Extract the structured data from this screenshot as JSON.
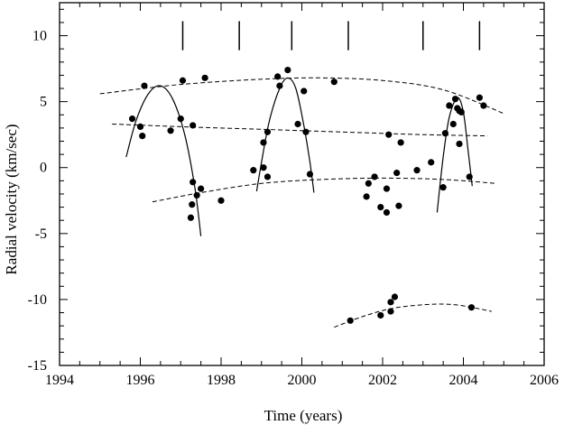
{
  "chart_data": {
    "type": "scatter",
    "title": "",
    "xlabel": "Time (years)",
    "ylabel": "Radial velocity (km/sec)",
    "xlim": [
      1994,
      2006
    ],
    "ylim": [
      -15,
      12.5
    ],
    "x_ticks": [
      1994,
      1996,
      1998,
      2000,
      2002,
      2004,
      2006
    ],
    "y_ticks": [
      -15,
      -10,
      -5,
      0,
      5,
      10
    ],
    "minor_x_step": 0.5,
    "minor_y_step": 1,
    "grid": false,
    "legend": "none",
    "colors": {
      "points": "#000000",
      "curves": "#000000"
    },
    "observations": [
      {
        "x": 1995.8,
        "y": 3.7
      },
      {
        "x": 1996.0,
        "y": 3.1
      },
      {
        "x": 1996.05,
        "y": 2.4
      },
      {
        "x": 1996.1,
        "y": 6.2
      },
      {
        "x": 1996.75,
        "y": 2.8
      },
      {
        "x": 1997.0,
        "y": 3.7
      },
      {
        "x": 1997.05,
        "y": 6.6
      },
      {
        "x": 1997.3,
        "y": 3.2
      },
      {
        "x": 1997.3,
        "y": -1.1
      },
      {
        "x": 1997.28,
        "y": -2.8
      },
      {
        "x": 1997.25,
        "y": -3.8
      },
      {
        "x": 1997.4,
        "y": -2.1
      },
      {
        "x": 1997.5,
        "y": -1.6
      },
      {
        "x": 1997.6,
        "y": 6.8
      },
      {
        "x": 1998.0,
        "y": -2.5
      },
      {
        "x": 1998.8,
        "y": -0.2
      },
      {
        "x": 1999.05,
        "y": 0.0
      },
      {
        "x": 1999.05,
        "y": 1.9
      },
      {
        "x": 1999.15,
        "y": 2.7
      },
      {
        "x": 1999.15,
        "y": -0.7
      },
      {
        "x": 1999.4,
        "y": 6.9
      },
      {
        "x": 1999.45,
        "y": 6.2
      },
      {
        "x": 1999.65,
        "y": 7.4
      },
      {
        "x": 1999.9,
        "y": 3.3
      },
      {
        "x": 2000.05,
        "y": 5.8
      },
      {
        "x": 2000.1,
        "y": 2.7
      },
      {
        "x": 2000.2,
        "y": -0.5
      },
      {
        "x": 2000.8,
        "y": 6.5
      },
      {
        "x": 2001.6,
        "y": -2.2
      },
      {
        "x": 2001.65,
        "y": -1.2
      },
      {
        "x": 2001.8,
        "y": -0.7
      },
      {
        "x": 2001.95,
        "y": -3.0
      },
      {
        "x": 2002.1,
        "y": -3.4
      },
      {
        "x": 2002.1,
        "y": -1.6
      },
      {
        "x": 2002.15,
        "y": 2.5
      },
      {
        "x": 2002.35,
        "y": -0.4
      },
      {
        "x": 2002.4,
        "y": -2.9
      },
      {
        "x": 2002.45,
        "y": 1.9
      },
      {
        "x": 2002.85,
        "y": -0.2
      },
      {
        "x": 2003.2,
        "y": 0.4
      },
      {
        "x": 2003.5,
        "y": -1.5
      },
      {
        "x": 2003.55,
        "y": 2.6
      },
      {
        "x": 2003.65,
        "y": 4.7
      },
      {
        "x": 2003.75,
        "y": 3.3
      },
      {
        "x": 2003.8,
        "y": 5.2
      },
      {
        "x": 2003.85,
        "y": 4.5
      },
      {
        "x": 2003.9,
        "y": 4.3
      },
      {
        "x": 2003.95,
        "y": 4.2
      },
      {
        "x": 2003.9,
        "y": 1.8
      },
      {
        "x": 2004.15,
        "y": -0.7
      },
      {
        "x": 2004.4,
        "y": 5.3
      },
      {
        "x": 2004.5,
        "y": 4.7
      },
      {
        "x": 2001.2,
        "y": -11.6
      },
      {
        "x": 2001.95,
        "y": -11.2
      },
      {
        "x": 2002.2,
        "y": -10.9
      },
      {
        "x": 2002.2,
        "y": -10.2
      },
      {
        "x": 2002.3,
        "y": -9.8
      },
      {
        "x": 2004.2,
        "y": -10.6
      }
    ],
    "dashed_curves": [
      {
        "points": [
          [
            1995.0,
            5.6
          ],
          [
            1997.0,
            6.3
          ],
          [
            1999.0,
            6.7
          ],
          [
            2000.5,
            6.8
          ],
          [
            2002.0,
            6.6
          ],
          [
            2003.5,
            5.9
          ],
          [
            2005.0,
            4.1
          ]
        ]
      },
      {
        "points": [
          [
            1995.3,
            3.3
          ],
          [
            1997.0,
            3.1
          ],
          [
            1999.0,
            2.9
          ],
          [
            2001.0,
            2.7
          ],
          [
            2003.0,
            2.5
          ],
          [
            2004.6,
            2.4
          ]
        ]
      },
      {
        "points": [
          [
            1996.3,
            -2.6
          ],
          [
            1997.5,
            -1.9
          ],
          [
            1999.0,
            -1.2
          ],
          [
            2000.5,
            -0.9
          ],
          [
            2002.0,
            -0.8
          ],
          [
            2003.5,
            -0.9
          ],
          [
            2004.8,
            -1.2
          ]
        ]
      },
      {
        "points": [
          [
            2000.8,
            -12.1
          ],
          [
            2001.5,
            -11.3
          ],
          [
            2002.2,
            -10.7
          ],
          [
            2003.0,
            -10.4
          ],
          [
            2003.8,
            -10.4
          ],
          [
            2004.7,
            -10.9
          ]
        ]
      }
    ],
    "solid_curves": [
      {
        "points": [
          [
            1995.65,
            0.8
          ],
          [
            1995.9,
            3.6
          ],
          [
            1996.2,
            5.6
          ],
          [
            1996.5,
            6.2
          ],
          [
            1996.8,
            5.2
          ],
          [
            1997.1,
            2.5
          ],
          [
            1997.35,
            -1.5
          ],
          [
            1997.5,
            -5.2
          ]
        ]
      },
      {
        "points": [
          [
            1998.88,
            -1.8
          ],
          [
            1999.0,
            0.4
          ],
          [
            1999.2,
            3.6
          ],
          [
            1999.45,
            6.0
          ],
          [
            1999.65,
            6.8
          ],
          [
            1999.85,
            6.0
          ],
          [
            2000.05,
            3.2
          ],
          [
            2000.2,
            0.4
          ],
          [
            2000.3,
            -1.9
          ]
        ]
      },
      {
        "points": [
          [
            2003.35,
            -3.4
          ],
          [
            2003.5,
            0.8
          ],
          [
            2003.65,
            3.8
          ],
          [
            2003.85,
            5.3
          ],
          [
            2004.0,
            4.2
          ],
          [
            2004.12,
            1.2
          ],
          [
            2004.22,
            -1.4
          ]
        ]
      }
    ],
    "markers": [
      1997.05,
      1998.45,
      1999.75,
      2001.15,
      2003.0,
      2004.4
    ],
    "marker_range": [
      8.9,
      11.1
    ]
  }
}
